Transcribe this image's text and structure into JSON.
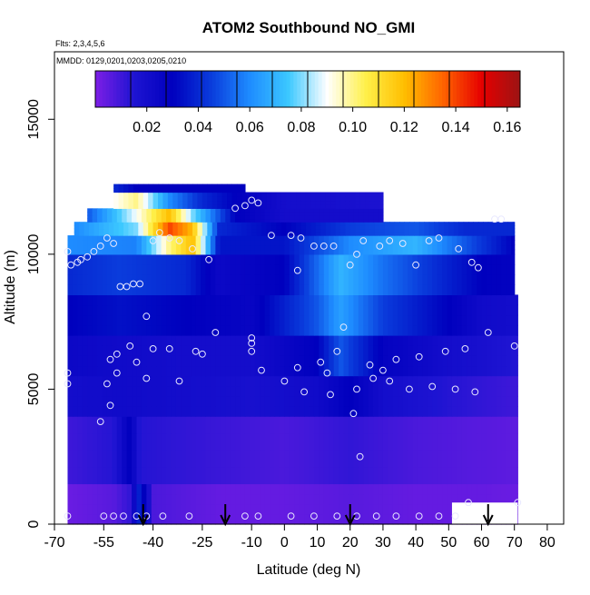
{
  "chart_data": {
    "type": "heatmap",
    "title": "ATOM2 Southbound NO_GMI",
    "flights_note": "Flts: 2,3,4,5,6",
    "dates_note": "MMDD: 0129,0201,0203,0205,0210",
    "xlabel": "Latitude (deg N)",
    "ylabel": "Altitude (m)",
    "xlim": [
      -70,
      85
    ],
    "ylim": [
      0,
      17500
    ],
    "x_ticks": [
      -70,
      -55,
      -40,
      -25,
      -10,
      0,
      10,
      20,
      30,
      40,
      50,
      60,
      70,
      80
    ],
    "y_ticks": [
      0,
      5000,
      10000,
      15000
    ],
    "colorbar": {
      "range": [
        0,
        0.165
      ],
      "ticks": [
        0.02,
        0.04,
        0.06,
        0.08,
        0.1,
        0.12,
        0.14,
        0.16
      ],
      "tick_labels": [
        "0.02",
        "0.04",
        "0.06",
        "0.08",
        "0.10",
        "0.12",
        "0.14",
        "0.16"
      ],
      "colors": [
        "#7d1ee6",
        "#1e14d2",
        "#0000be",
        "#0a3cdc",
        "#1e8cff",
        "#3cc8ff",
        "#ffffff",
        "#fff04a",
        "#ffbe00",
        "#ff6400",
        "#e60000",
        "#9c1414"
      ],
      "bin_count": 12
    },
    "grid": false,
    "field": {
      "description_rows": "altitude bands (bottom, top, value by latitude)",
      "rows": [
        {
          "alt": [
            0,
            1500
          ],
          "values": [
            [
              -66,
              0.003
            ],
            [
              -52,
              0.006
            ],
            [
              -47,
              0.012
            ],
            [
              -44,
              0.04
            ],
            [
              -40,
              0.008
            ],
            [
              -20,
              0.004
            ],
            [
              0,
              0.004
            ],
            [
              20,
              0.006
            ],
            [
              40,
              0.004
            ],
            [
              60,
              0.004
            ],
            [
              71,
              0.003
            ]
          ]
        },
        {
          "alt": [
            1500,
            4000
          ],
          "values": [
            [
              -66,
              0.01
            ],
            [
              -52,
              0.014
            ],
            [
              -47,
              0.03
            ],
            [
              -44,
              0.014
            ],
            [
              -30,
              0.012
            ],
            [
              0,
              0.008
            ],
            [
              20,
              0.012
            ],
            [
              40,
              0.008
            ],
            [
              60,
              0.006
            ],
            [
              71,
              0.005
            ]
          ]
        },
        {
          "alt": [
            4000,
            5500
          ],
          "values": [
            [
              -66,
              0.02
            ],
            [
              -50,
              0.022
            ],
            [
              -30,
              0.02
            ],
            [
              -10,
              0.018
            ],
            [
              10,
              0.022
            ],
            [
              20,
              0.03
            ],
            [
              30,
              0.02
            ],
            [
              50,
              0.014
            ],
            [
              60,
              0.012
            ],
            [
              71,
              0.01
            ]
          ]
        },
        {
          "alt": [
            5500,
            7000
          ],
          "values": [
            [
              -66,
              0.024
            ],
            [
              -50,
              0.022
            ],
            [
              -30,
              0.02
            ],
            [
              -10,
              0.02
            ],
            [
              10,
              0.03
            ],
            [
              17,
              0.05
            ],
            [
              30,
              0.028
            ],
            [
              50,
              0.02
            ],
            [
              60,
              0.018
            ],
            [
              71,
              0.014
            ]
          ]
        },
        {
          "alt": [
            7000,
            8500
          ],
          "values": [
            [
              -66,
              0.03
            ],
            [
              -50,
              0.034
            ],
            [
              -30,
              0.03
            ],
            [
              -10,
              0.026
            ],
            [
              10,
              0.05
            ],
            [
              17,
              0.065
            ],
            [
              30,
              0.045
            ],
            [
              50,
              0.03
            ],
            [
              60,
              0.022
            ],
            [
              71,
              0.02
            ]
          ]
        },
        {
          "alt": [
            8500,
            10000
          ],
          "values": [
            [
              -66,
              0.04
            ],
            [
              -50,
              0.045
            ],
            [
              -30,
              0.04
            ],
            [
              -20,
              0.024
            ],
            [
              0,
              0.03
            ],
            [
              17,
              0.07
            ],
            [
              30,
              0.055
            ],
            [
              50,
              0.038
            ],
            [
              60,
              0.03
            ],
            [
              70,
              0.028
            ]
          ]
        },
        {
          "alt": [
            10000,
            10700
          ],
          "values": [
            [
              -66,
              0.06
            ],
            [
              -45,
              0.058
            ],
            [
              -35,
              0.1
            ],
            [
              -28,
              0.12
            ],
            [
              -20,
              0.035
            ],
            [
              0,
              0.035
            ],
            [
              20,
              0.06
            ],
            [
              40,
              0.07
            ],
            [
              55,
              0.05
            ],
            [
              70,
              0.03
            ]
          ]
        },
        {
          "alt": [
            10700,
            11200
          ],
          "values": [
            [
              -64,
              0.06
            ],
            [
              -45,
              0.08
            ],
            [
              -35,
              0.14
            ],
            [
              -28,
              0.12
            ],
            [
              -20,
              0.04
            ],
            [
              0,
              0.03
            ],
            [
              20,
              0.045
            ],
            [
              40,
              0.05
            ],
            [
              55,
              0.04
            ],
            [
              70,
              0.04
            ]
          ]
        },
        {
          "alt": [
            11200,
            11700
          ],
          "values": [
            [
              -60,
              0.05
            ],
            [
              -45,
              0.09
            ],
            [
              -35,
              0.12
            ],
            [
              -28,
              0.08
            ],
            [
              -15,
              0.03
            ],
            [
              0,
              0.02
            ],
            [
              20,
              0.02
            ],
            [
              30,
              0.02
            ]
          ]
        },
        {
          "alt": [
            11700,
            12300
          ],
          "values": [
            [
              -52,
              0.09
            ],
            [
              -45,
              0.1
            ],
            [
              -35,
              0.06
            ],
            [
              -25,
              0.04
            ],
            [
              -15,
              0.03
            ],
            [
              0,
              0.02
            ],
            [
              20,
              0.018
            ],
            [
              30,
              0.016
            ]
          ]
        },
        {
          "alt": [
            12300,
            12600
          ],
          "values": [
            [
              -52,
              0.04
            ],
            [
              -45,
              0.03
            ],
            [
              -35,
              0.03
            ],
            [
              -15,
              0.03
            ]
          ]
        }
      ],
      "row_extents": [
        [
          -66,
          71
        ],
        [
          -66,
          71
        ],
        [
          -66,
          71
        ],
        [
          -66,
          71
        ],
        [
          -66,
          71
        ],
        [
          -66,
          70
        ],
        [
          -66,
          70
        ],
        [
          -64,
          70
        ],
        [
          -60,
          30
        ],
        [
          -52,
          30
        ],
        [
          -52,
          -12
        ]
      ]
    },
    "observations": [
      [
        -66,
        300
      ],
      [
        -55,
        300
      ],
      [
        -52,
        300
      ],
      [
        -49,
        300
      ],
      [
        -45,
        300
      ],
      [
        -42,
        300
      ],
      [
        -37,
        300
      ],
      [
        -29,
        300
      ],
      [
        -12,
        300
      ],
      [
        -8,
        300
      ],
      [
        2,
        300
      ],
      [
        9,
        300
      ],
      [
        16,
        300
      ],
      [
        22,
        300
      ],
      [
        28,
        300
      ],
      [
        34,
        300
      ],
      [
        41,
        300
      ],
      [
        47,
        300
      ],
      [
        52,
        300
      ],
      [
        56,
        800
      ],
      [
        71,
        800
      ],
      [
        -66,
        5600
      ],
      [
        -66,
        5200
      ],
      [
        -56,
        3800
      ],
      [
        -53,
        4400
      ],
      [
        -54,
        5200
      ],
      [
        -51,
        5600
      ],
      [
        -53,
        6100
      ],
      [
        -51,
        6300
      ],
      [
        -47,
        6600
      ],
      [
        -45,
        6000
      ],
      [
        -42,
        5400
      ],
      [
        -40,
        6500
      ],
      [
        -35,
        6500
      ],
      [
        -32,
        5300
      ],
      [
        -27,
        6400
      ],
      [
        -25,
        6300
      ],
      [
        -21,
        7100
      ],
      [
        -10,
        6900
      ],
      [
        -10,
        6700
      ],
      [
        -10,
        6400
      ],
      [
        -7,
        5700
      ],
      [
        0,
        5300
      ],
      [
        4,
        5800
      ],
      [
        6,
        4900
      ],
      [
        11,
        6000
      ],
      [
        13,
        5600
      ],
      [
        14,
        4800
      ],
      [
        16,
        6400
      ],
      [
        18,
        7300
      ],
      [
        21,
        4100
      ],
      [
        22,
        5000
      ],
      [
        23,
        2500
      ],
      [
        26,
        5900
      ],
      [
        27,
        5400
      ],
      [
        30,
        5700
      ],
      [
        32,
        5300
      ],
      [
        34,
        6100
      ],
      [
        38,
        5000
      ],
      [
        41,
        6200
      ],
      [
        45,
        5100
      ],
      [
        49,
        6400
      ],
      [
        52,
        5000
      ],
      [
        55,
        6500
      ],
      [
        58,
        4900
      ],
      [
        62,
        7100
      ],
      [
        70,
        6600
      ],
      [
        -66,
        10100
      ],
      [
        -65,
        9600
      ],
      [
        -63,
        9700
      ],
      [
        -62,
        9800
      ],
      [
        -60,
        9900
      ],
      [
        -58,
        10100
      ],
      [
        -56,
        10300
      ],
      [
        -54,
        10600
      ],
      [
        -52,
        10400
      ],
      [
        -50,
        8800
      ],
      [
        -48,
        8800
      ],
      [
        -46,
        8900
      ],
      [
        -44,
        8900
      ],
      [
        -42,
        7700
      ],
      [
        -40,
        10500
      ],
      [
        -38,
        10800
      ],
      [
        -35,
        10600
      ],
      [
        -32,
        10500
      ],
      [
        -28,
        10200
      ],
      [
        -23,
        9800
      ],
      [
        -15,
        11700
      ],
      [
        -12,
        11800
      ],
      [
        -10,
        12000
      ],
      [
        -8,
        11900
      ],
      [
        -4,
        10700
      ],
      [
        2,
        10700
      ],
      [
        5,
        10600
      ],
      [
        4,
        9400
      ],
      [
        9,
        10300
      ],
      [
        12,
        10300
      ],
      [
        15,
        10300
      ],
      [
        20,
        9600
      ],
      [
        22,
        10000
      ],
      [
        24,
        10500
      ],
      [
        29,
        10300
      ],
      [
        32,
        10500
      ],
      [
        36,
        10400
      ],
      [
        40,
        9600
      ],
      [
        44,
        10500
      ],
      [
        47,
        10600
      ],
      [
        53,
        10200
      ],
      [
        57,
        9700
      ],
      [
        59,
        9500
      ],
      [
        64,
        11300
      ],
      [
        66,
        11300
      ]
    ],
    "arrows_x": [
      -43,
      -18,
      20,
      62
    ]
  }
}
